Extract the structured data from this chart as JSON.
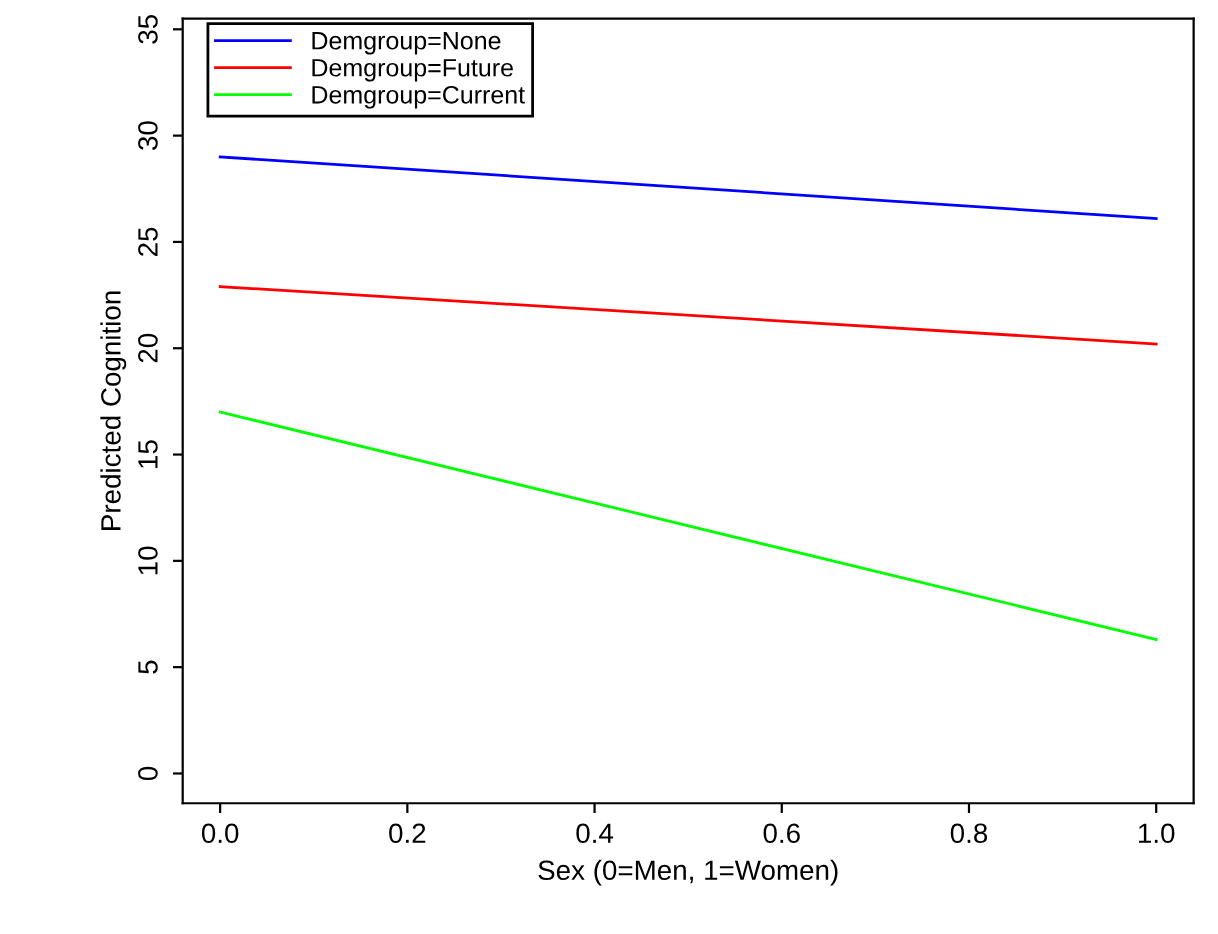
{
  "chart_data": {
    "type": "line",
    "xlabel": "Sex (0=Men, 1=Women)",
    "ylabel": "Predicted Cognition",
    "x": [
      0,
      1
    ],
    "series": [
      {
        "name": "Demgroup=None",
        "color": "#0000ff",
        "values": [
          29.0,
          26.1
        ]
      },
      {
        "name": "Demgroup=Future",
        "color": "#ff0000",
        "values": [
          22.9,
          20.2
        ]
      },
      {
        "name": "Demgroup=Current",
        "color": "#00ff00",
        "values": [
          17.0,
          6.3
        ]
      }
    ],
    "xlim": [
      -0.04,
      1.04
    ],
    "ylim": [
      -1.4,
      35.5
    ],
    "xticks": [
      {
        "value": 0,
        "label": "0.0"
      },
      {
        "value": 0.2,
        "label": "0.2"
      },
      {
        "value": 0.4,
        "label": "0.4"
      },
      {
        "value": 0.6,
        "label": "0.6"
      },
      {
        "value": 0.8,
        "label": "0.8"
      },
      {
        "value": 1,
        "label": "1.0"
      }
    ],
    "yticks": [
      0,
      5,
      10,
      15,
      20,
      25,
      30,
      35
    ],
    "legend": "top left",
    "grid": false
  }
}
